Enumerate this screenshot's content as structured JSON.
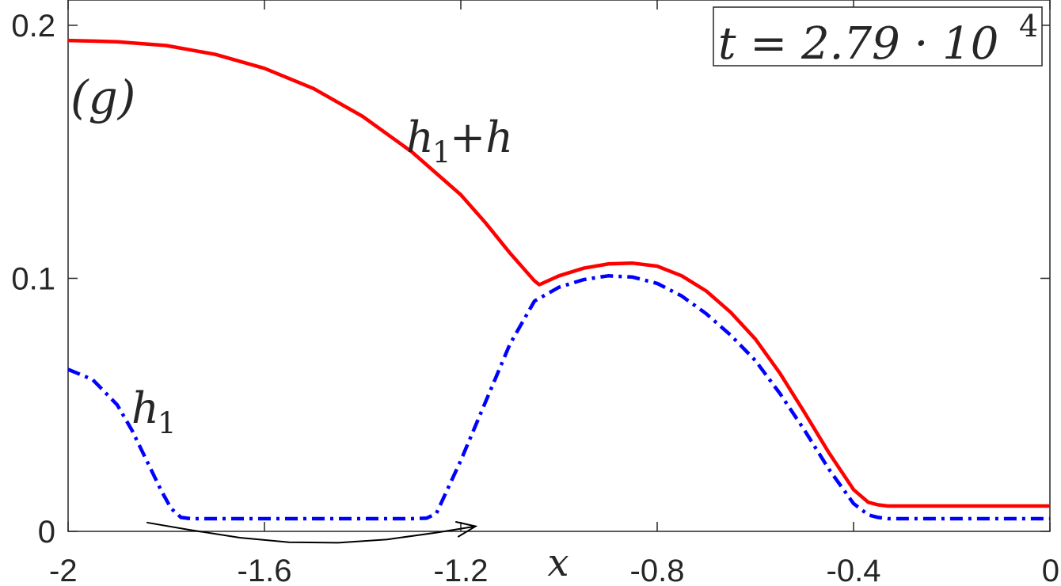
{
  "chart_data": {
    "type": "line",
    "panel_label": "(g)",
    "time_label": {
      "prefix": "t = 2.79 · 10",
      "exponent": "4"
    },
    "xlabel": "x",
    "ylabel": "",
    "xlim": [
      -2,
      0
    ],
    "ylim": [
      0,
      0.21
    ],
    "xticks": [
      {
        "value": -2,
        "label": "-2"
      },
      {
        "value": -1.6,
        "label": "-1.6"
      },
      {
        "value": -1.2,
        "label": "-1.2"
      },
      {
        "value": -0.8,
        "label": "-0.8"
      },
      {
        "value": -0.4,
        "label": "-0.4"
      },
      {
        "value": 0,
        "label": "0"
      }
    ],
    "yticks": [
      {
        "value": 0,
        "label": "0"
      },
      {
        "value": 0.1,
        "label": "0.1"
      },
      {
        "value": 0.2,
        "label": "0.2"
      }
    ],
    "grid": false,
    "series": [
      {
        "name": "h1+h",
        "label_main": "h",
        "label_sub": "1",
        "label_rest": "+h",
        "color": "#ff0000",
        "style": "solid",
        "x": [
          -2.0,
          -1.9,
          -1.8,
          -1.7,
          -1.6,
          -1.5,
          -1.4,
          -1.3,
          -1.2,
          -1.15,
          -1.1,
          -1.05,
          -1.04,
          -1.0,
          -0.95,
          -0.9,
          -0.85,
          -0.8,
          -0.75,
          -0.7,
          -0.65,
          -0.6,
          -0.55,
          -0.5,
          -0.45,
          -0.4,
          -0.37,
          -0.35,
          -0.33,
          -0.3,
          -0.2,
          -0.1,
          0.0
        ],
        "y": [
          0.194,
          0.1935,
          0.192,
          0.1885,
          0.183,
          0.175,
          0.164,
          0.15,
          0.133,
          0.122,
          0.11,
          0.099,
          0.0975,
          0.101,
          0.104,
          0.1057,
          0.106,
          0.1048,
          0.101,
          0.095,
          0.0865,
          0.076,
          0.0625,
          0.047,
          0.031,
          0.0165,
          0.0115,
          0.0105,
          0.01,
          0.01,
          0.01,
          0.01,
          0.01
        ]
      },
      {
        "name": "h1",
        "label_main": "h",
        "label_sub": "1",
        "label_rest": "",
        "color": "#0000ff",
        "style": "dashdot",
        "x": [
          -2.0,
          -1.95,
          -1.9,
          -1.87,
          -1.84,
          -1.81,
          -1.79,
          -1.77,
          -1.75,
          -1.7,
          -1.6,
          -1.5,
          -1.4,
          -1.3,
          -1.27,
          -1.25,
          -1.2,
          -1.15,
          -1.1,
          -1.05,
          -1.0,
          -0.95,
          -0.9,
          -0.85,
          -0.8,
          -0.75,
          -0.7,
          -0.65,
          -0.6,
          -0.55,
          -0.5,
          -0.45,
          -0.4,
          -0.37,
          -0.35,
          -0.33,
          -0.3,
          -0.2,
          -0.1,
          0.0
        ],
        "y": [
          0.064,
          0.06,
          0.05,
          0.04,
          0.028,
          0.016,
          0.009,
          0.0055,
          0.005,
          0.005,
          0.005,
          0.005,
          0.005,
          0.005,
          0.0052,
          0.007,
          0.028,
          0.051,
          0.074,
          0.091,
          0.0965,
          0.0995,
          0.101,
          0.1005,
          0.098,
          0.093,
          0.086,
          0.0775,
          0.0675,
          0.0545,
          0.04,
          0.0245,
          0.011,
          0.0065,
          0.0055,
          0.005,
          0.005,
          0.005,
          0.005,
          0.005
        ]
      }
    ],
    "annotations": [
      {
        "type": "arrow",
        "x": [
          -1.84,
          -1.75,
          -1.65,
          -1.55,
          -1.45,
          -1.35,
          -1.25,
          -1.17
        ],
        "y": [
          0.0035,
          0.0005,
          -0.0025,
          -0.0043,
          -0.0045,
          -0.0032,
          -0.0005,
          0.002
        ],
        "color": "#000000"
      }
    ]
  }
}
